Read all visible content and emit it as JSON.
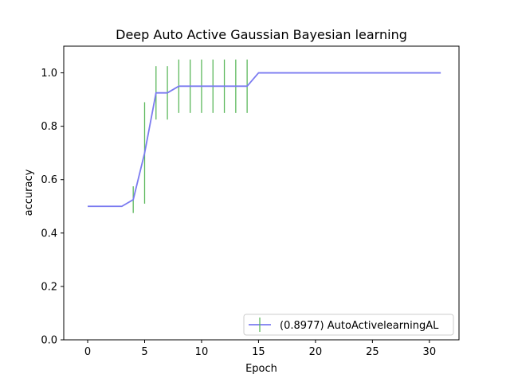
{
  "chart_data": {
    "type": "line",
    "title": "Deep Auto Active Gaussian Bayesian learning",
    "xlabel": "Epoch",
    "ylabel": "accuracy",
    "xlim": [
      -2.1,
      32.6
    ],
    "ylim": [
      0.0,
      1.1
    ],
    "xticks": [
      0,
      5,
      10,
      15,
      20,
      25,
      30
    ],
    "yticks": [
      0.0,
      0.2,
      0.4,
      0.6,
      0.8,
      1.0
    ],
    "xtick_labels": [
      "0",
      "5",
      "10",
      "15",
      "20",
      "25",
      "30"
    ],
    "ytick_labels": [
      "0.0",
      "0.2",
      "0.4",
      "0.6",
      "0.8",
      "1.0"
    ],
    "grid": false,
    "legend_position": "lower-right",
    "series": [
      {
        "name": "(0.8977) AutoActivelearningAL",
        "color": "#7b7bf0",
        "error_color": "#5cb85c",
        "x": [
          0,
          1,
          2,
          3,
          4,
          5,
          6,
          7,
          8,
          9,
          10,
          11,
          12,
          13,
          14,
          15,
          16,
          17,
          18,
          19,
          20,
          21,
          22,
          23,
          24,
          25,
          26,
          27,
          28,
          29,
          30,
          31
        ],
        "y": [
          0.5,
          0.5,
          0.5,
          0.5,
          0.525,
          0.7,
          0.925,
          0.925,
          0.95,
          0.95,
          0.95,
          0.95,
          0.95,
          0.95,
          0.95,
          1.0,
          1.0,
          1.0,
          1.0,
          1.0,
          1.0,
          1.0,
          1.0,
          1.0,
          1.0,
          1.0,
          1.0,
          1.0,
          1.0,
          1.0,
          1.0,
          1.0
        ],
        "yerr": [
          0,
          0,
          0,
          0,
          0.05,
          0.19,
          0.1,
          0.1,
          0.1,
          0.1,
          0.1,
          0.1,
          0.1,
          0.1,
          0.1,
          0,
          0,
          0,
          0,
          0,
          0,
          0,
          0,
          0,
          0,
          0,
          0,
          0,
          0,
          0,
          0,
          0
        ]
      }
    ]
  }
}
